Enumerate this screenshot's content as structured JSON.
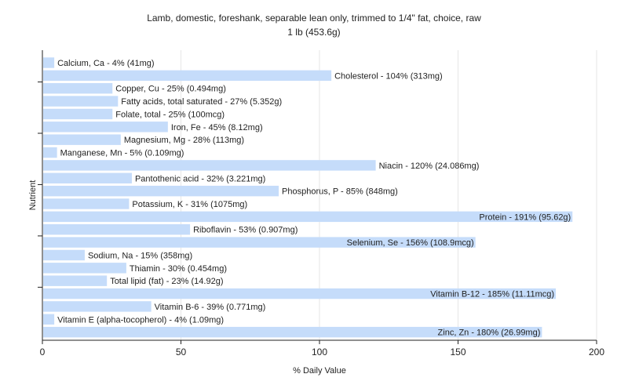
{
  "chart_data": {
    "type": "bar",
    "orientation": "horizontal",
    "title_line1": "Lamb, domestic, foreshank, separable lean only, trimmed to 1/4\" fat, choice, raw",
    "title_line2": "1 lb (453.6g)",
    "xlabel": "% Daily Value",
    "ylabel": "Nutrient",
    "xlim": [
      0,
      200
    ],
    "xticks": [
      0,
      50,
      100,
      150,
      200
    ],
    "grid": true,
    "bar_color": "#c5dcfa",
    "bars": [
      {
        "value": 4,
        "label": "Calcium, Ca - 4% (41mg)"
      },
      {
        "value": 104,
        "label": "Cholesterol - 104% (313mg)"
      },
      {
        "value": 25,
        "label": "Copper, Cu - 25% (0.494mg)"
      },
      {
        "value": 27,
        "label": "Fatty acids, total saturated - 27% (5.352g)"
      },
      {
        "value": 25,
        "label": "Folate, total - 25% (100mcg)"
      },
      {
        "value": 45,
        "label": "Iron, Fe - 45% (8.12mg)"
      },
      {
        "value": 28,
        "label": "Magnesium, Mg - 28% (113mg)"
      },
      {
        "value": 5,
        "label": "Manganese, Mn - 5% (0.109mg)"
      },
      {
        "value": 120,
        "label": "Niacin - 120% (24.086mg)"
      },
      {
        "value": 32,
        "label": "Pantothenic acid - 32% (3.221mg)"
      },
      {
        "value": 85,
        "label": "Phosphorus, P - 85% (848mg)"
      },
      {
        "value": 31,
        "label": "Potassium, K - 31% (1075mg)"
      },
      {
        "value": 191,
        "label": "Protein - 191% (95.62g)"
      },
      {
        "value": 53,
        "label": "Riboflavin - 53% (0.907mg)"
      },
      {
        "value": 156,
        "label": "Selenium, Se - 156% (108.9mcg)"
      },
      {
        "value": 15,
        "label": "Sodium, Na - 15% (358mg)"
      },
      {
        "value": 30,
        "label": "Thiamin - 30% (0.454mg)"
      },
      {
        "value": 23,
        "label": "Total lipid (fat) - 23% (14.92g)"
      },
      {
        "value": 185,
        "label": "Vitamin B-12 - 185% (11.11mcg)"
      },
      {
        "value": 39,
        "label": "Vitamin B-6 - 39% (0.771mg)"
      },
      {
        "value": 4,
        "label": "Vitamin E (alpha-tocopherol) - 4% (1.09mg)"
      },
      {
        "value": 180,
        "label": "Zinc, Zn - 180% (26.99mg)"
      }
    ]
  }
}
